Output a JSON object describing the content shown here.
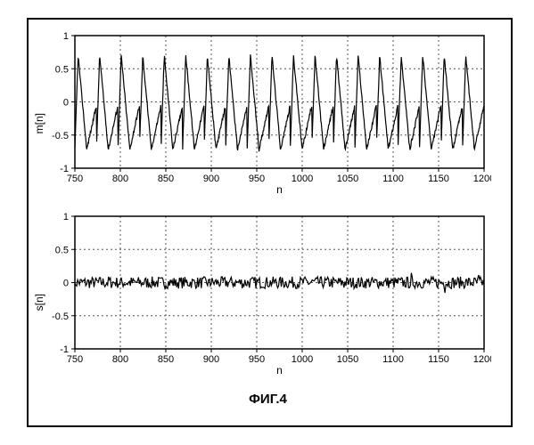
{
  "figure": {
    "background_color": "#ffffff",
    "border_color": "#000000",
    "caption": "ФИГ.4",
    "caption_fontsize": 15,
    "caption_fontweight": "bold"
  },
  "panels": [
    {
      "id": "top",
      "ylabel": "m[n]",
      "xlabel": "n",
      "xlim": [
        750,
        1200
      ],
      "ylim": [
        -1,
        1
      ],
      "xticks": [
        750,
        800,
        850,
        900,
        950,
        1000,
        1050,
        1100,
        1150,
        1200
      ],
      "yticks": [
        -1,
        -0.5,
        0,
        0.5,
        1
      ],
      "grid_color": "#555555",
      "grid_dash": "2 3",
      "line_color": "#000000",
      "line_width": 1.2,
      "series": {
        "type": "oscillatory",
        "cycles": 19,
        "amp_high": 0.7,
        "amp_low": -0.72,
        "noise": 0.03,
        "x_start": 750,
        "x_end": 1200
      }
    },
    {
      "id": "bottom",
      "ylabel": "s[n]",
      "xlabel": "n",
      "xlim": [
        750,
        1200
      ],
      "ylim": [
        -1,
        1
      ],
      "xticks": [
        750,
        800,
        850,
        900,
        950,
        1000,
        1050,
        1100,
        1150,
        1200
      ],
      "yticks": [
        -1,
        -0.5,
        0,
        0.5,
        1
      ],
      "grid_color": "#555555",
      "grid_dash": "2 3",
      "line_color": "#000000",
      "line_width": 1.2,
      "series": {
        "type": "noise",
        "mean": 0,
        "amp": 0.09,
        "x_start": 750,
        "x_end": 1200,
        "samples": 450
      }
    }
  ],
  "axes_style": {
    "tick_fontsize": 11,
    "label_fontsize": 12,
    "border_color": "#000000",
    "border_width": 1.5
  }
}
